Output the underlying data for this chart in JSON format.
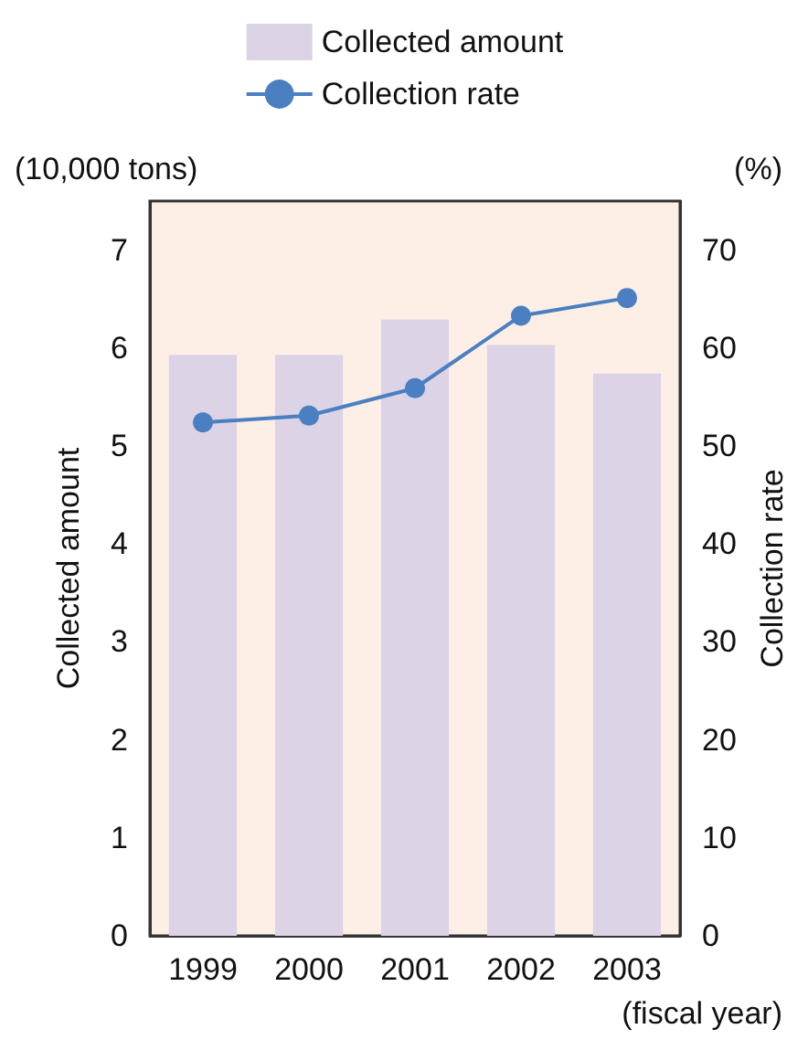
{
  "chart_data": {
    "type": "bar",
    "categories": [
      "1999",
      "2000",
      "2001",
      "2002",
      "2003"
    ],
    "series": [
      {
        "name": "Collected amount",
        "color": "#dcd3e6",
        "values": [
          5.93,
          5.93,
          6.29,
          6.03,
          5.74
        ]
      },
      {
        "name": "Collection rate",
        "type": "line",
        "axis": "y2",
        "color": "#4a7fc1",
        "values": [
          52.4,
          53.1,
          55.9,
          63.3,
          65.1
        ]
      }
    ],
    "ylabel": "Collected amount",
    "y2label": "Collection rate",
    "ylim": [
      0,
      7.5
    ],
    "yticks": [
      0,
      1,
      2,
      3,
      4,
      5,
      6,
      7
    ],
    "y2lim": [
      0,
      75
    ],
    "y2ticks": [
      0,
      10,
      20,
      30,
      40,
      50,
      60,
      70
    ],
    "annotations": [
      "(10,000 tons)",
      "(%)",
      "(fiscal year)"
    ],
    "legend": "top",
    "grid": false,
    "marker": "circle",
    "line_style": "solid"
  }
}
